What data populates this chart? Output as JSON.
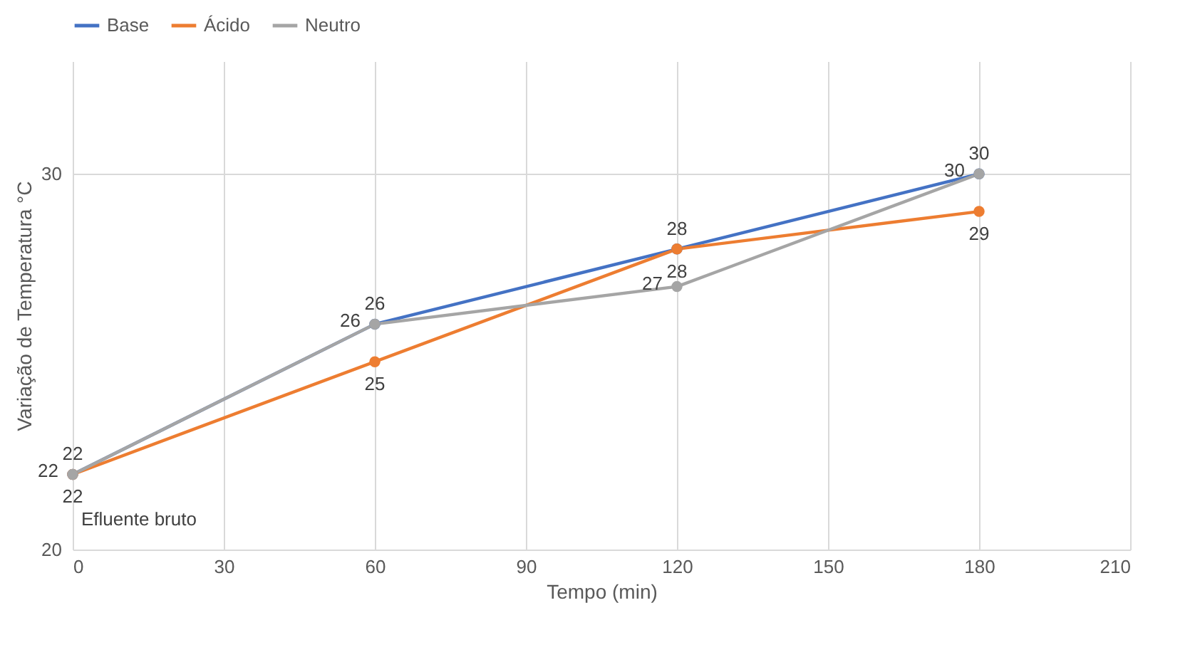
{
  "chart_data": {
    "type": "line",
    "xlabel": "Tempo (min)",
    "ylabel": "Variação de Temperatura °C",
    "x": [
      0,
      60,
      120,
      180
    ],
    "series": [
      {
        "name": "Base",
        "color": "#4472c4",
        "values": [
          22,
          26,
          28,
          30
        ]
      },
      {
        "name": "Ácido",
        "color": "#ed7d31",
        "values": [
          22,
          25,
          28,
          29
        ]
      },
      {
        "name": "Neutro",
        "color": "#a5a5a5",
        "values": [
          22,
          26,
          27,
          30
        ]
      }
    ],
    "xlim": [
      0,
      210
    ],
    "xticks": [
      0,
      30,
      60,
      90,
      120,
      150,
      180,
      210
    ],
    "ylim": [
      20,
      33
    ],
    "yticks": [
      20,
      30
    ],
    "grid": true,
    "legend": "top",
    "marker": "circle",
    "line_style": "solid",
    "data_labels": true,
    "annotations": [
      {
        "text": "Efluente bruto",
        "x": 0,
        "y": 22
      }
    ]
  }
}
